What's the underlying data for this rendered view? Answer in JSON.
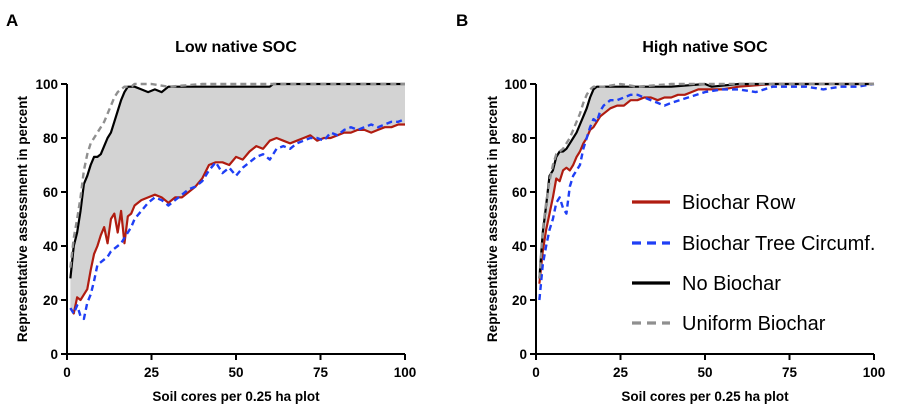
{
  "colors": {
    "biochar_row": "#b01c10",
    "biochar_tree": "#1f3ff5",
    "no_biochar": "#000000",
    "uniform": "#8f8f8f",
    "shade": "#d3d3d3"
  },
  "chart_data": [
    {
      "panel": "A",
      "type": "line",
      "title": "Low native SOC",
      "xlabel": "Soil cores per 0.25 ha plot",
      "ylabel": "Representative assessment in percent",
      "xlim": [
        0,
        100
      ],
      "ylim": [
        0,
        100
      ],
      "xticks": [
        "0",
        "25",
        "50",
        "75",
        "100"
      ],
      "yticks": [
        "0",
        "20",
        "40",
        "60",
        "80",
        "100"
      ],
      "grid": false,
      "shaded_region": "between No Biochar and Biochar Row",
      "series": [
        {
          "name": "Biochar Row",
          "style": "solid",
          "color": "#b01c10",
          "x": [
            1,
            2,
            3,
            4,
            5,
            6,
            7,
            8,
            9,
            10,
            11,
            12,
            13,
            14,
            15,
            16,
            17,
            18,
            19,
            20,
            22,
            24,
            26,
            28,
            30,
            32,
            34,
            36,
            38,
            40,
            42,
            44,
            46,
            48,
            50,
            52,
            54,
            56,
            58,
            60,
            62,
            64,
            66,
            68,
            70,
            72,
            74,
            76,
            78,
            80,
            82,
            84,
            86,
            88,
            90,
            92,
            94,
            96,
            98,
            100
          ],
          "y": [
            17,
            15,
            21,
            20,
            22,
            24,
            31,
            37,
            40,
            44,
            47,
            41,
            50,
            52,
            45,
            53,
            41,
            51,
            52,
            55,
            57,
            58,
            59,
            58,
            56,
            58,
            58,
            60,
            62,
            65,
            70,
            71,
            71,
            70,
            73,
            72,
            75,
            77,
            76,
            79,
            80,
            79,
            78,
            79,
            80,
            81,
            79,
            80,
            80,
            81,
            82,
            82,
            83,
            83,
            82,
            83,
            84,
            84,
            85,
            85
          ]
        },
        {
          "name": "Biochar Tree Circumf.",
          "style": "dashed",
          "color": "#1f3ff5",
          "x": [
            1,
            2,
            3,
            4,
            5,
            6,
            7,
            8,
            9,
            10,
            11,
            12,
            13,
            14,
            15,
            16,
            17,
            18,
            19,
            20,
            22,
            24,
            26,
            28,
            30,
            32,
            34,
            36,
            38,
            40,
            42,
            44,
            46,
            48,
            50,
            52,
            54,
            56,
            58,
            60,
            62,
            64,
            66,
            68,
            70,
            72,
            74,
            76,
            78,
            80,
            82,
            84,
            86,
            88,
            90,
            92,
            94,
            96,
            98,
            100
          ],
          "y": [
            17,
            15,
            18,
            14,
            13,
            19,
            22,
            27,
            33,
            34,
            35,
            36,
            38,
            39,
            40,
            41,
            43,
            45,
            47,
            50,
            53,
            56,
            58,
            57,
            55,
            57,
            59,
            61,
            62,
            64,
            68,
            71,
            67,
            69,
            66,
            69,
            71,
            73,
            74,
            72,
            76,
            77,
            76,
            78,
            79,
            80,
            80,
            79,
            82,
            81,
            83,
            84,
            83,
            84,
            85,
            84,
            85,
            86,
            86,
            87
          ]
        },
        {
          "name": "No Biochar",
          "style": "solid",
          "color": "#000000",
          "x": [
            1,
            2,
            3,
            4,
            5,
            6,
            7,
            8,
            9,
            10,
            11,
            12,
            13,
            14,
            15,
            16,
            17,
            18,
            19,
            20,
            22,
            24,
            26,
            28,
            30,
            35,
            40,
            45,
            50,
            55,
            60,
            61,
            65,
            70,
            80,
            90,
            100
          ],
          "y": [
            28,
            40,
            45,
            53,
            63,
            66,
            70,
            73,
            73,
            74,
            77,
            80,
            82,
            86,
            90,
            94,
            97,
            99,
            99,
            99,
            98,
            97,
            98,
            97,
            99,
            99,
            99,
            99,
            99,
            99,
            99,
            100,
            100,
            100,
            100,
            100,
            100
          ]
        },
        {
          "name": "Uniform Biochar",
          "style": "dashed",
          "color": "#8f8f8f",
          "x": [
            1,
            2,
            3,
            4,
            5,
            6,
            7,
            8,
            9,
            10,
            11,
            12,
            13,
            14,
            15,
            16,
            17,
            18,
            19,
            20,
            25,
            30,
            40,
            50,
            60,
            70,
            80,
            90,
            100
          ],
          "y": [
            32,
            43,
            50,
            58,
            68,
            74,
            78,
            80,
            82,
            84,
            86,
            89,
            92,
            95,
            97,
            98,
            99,
            99,
            99,
            100,
            100,
            99,
            100,
            100,
            100,
            100,
            100,
            100,
            100
          ]
        }
      ]
    },
    {
      "panel": "B",
      "type": "line",
      "title": "High native SOC",
      "xlabel": "Soil cores per 0.25 ha plot",
      "ylabel": "Representative assessment in percent",
      "xlim": [
        0,
        100
      ],
      "ylim": [
        0,
        100
      ],
      "xticks": [
        "0",
        "25",
        "50",
        "75",
        "100"
      ],
      "yticks": [
        "0",
        "20",
        "40",
        "60",
        "80",
        "100"
      ],
      "grid": false,
      "legend_position": "right",
      "shaded_region": "between No Biochar and Biochar Row",
      "series": [
        {
          "name": "Biochar Row",
          "style": "solid",
          "color": "#b01c10",
          "x": [
            1,
            2,
            3,
            4,
            5,
            6,
            7,
            8,
            9,
            10,
            11,
            12,
            13,
            14,
            15,
            16,
            17,
            18,
            19,
            20,
            22,
            24,
            26,
            28,
            30,
            32,
            34,
            36,
            38,
            40,
            42,
            44,
            46,
            48,
            50,
            55,
            60,
            70,
            80,
            90,
            100
          ],
          "y": [
            26,
            38,
            46,
            52,
            58,
            65,
            64,
            68,
            69,
            68,
            70,
            73,
            75,
            78,
            80,
            83,
            84,
            86,
            88,
            89,
            91,
            92,
            92,
            94,
            94,
            95,
            95,
            94,
            95,
            95,
            96,
            96,
            97,
            98,
            98,
            98,
            99,
            100,
            100,
            100,
            100
          ]
        },
        {
          "name": "Biochar Tree Circumf.",
          "style": "dashed",
          "color": "#1f3ff5",
          "x": [
            1,
            2,
            3,
            4,
            5,
            6,
            7,
            8,
            9,
            10,
            11,
            12,
            13,
            14,
            15,
            16,
            17,
            18,
            19,
            20,
            22,
            24,
            26,
            28,
            30,
            32,
            34,
            36,
            38,
            40,
            45,
            50,
            55,
            60,
            65,
            70,
            75,
            80,
            85,
            90,
            95,
            100
          ],
          "y": [
            20,
            33,
            40,
            46,
            50,
            56,
            58,
            54,
            52,
            62,
            66,
            68,
            70,
            76,
            80,
            84,
            87,
            86,
            90,
            92,
            94,
            94,
            95,
            96,
            96,
            95,
            94,
            93,
            92,
            93,
            95,
            97,
            98,
            98,
            97,
            99,
            99,
            99,
            98,
            99,
            99,
            100
          ]
        },
        {
          "name": "No Biochar",
          "style": "solid",
          "color": "#000000",
          "x": [
            1,
            2,
            3,
            4,
            5,
            6,
            7,
            8,
            9,
            10,
            11,
            12,
            13,
            14,
            15,
            16,
            17,
            18,
            19,
            20,
            25,
            30,
            40,
            50,
            52,
            60,
            70,
            80,
            90,
            100
          ],
          "y": [
            28,
            45,
            55,
            66,
            68,
            73,
            75,
            75,
            76,
            78,
            80,
            82,
            85,
            88,
            91,
            95,
            98,
            99,
            99,
            99,
            99,
            99,
            99,
            100,
            99,
            100,
            100,
            100,
            100,
            100
          ]
        },
        {
          "name": "Uniform Biochar",
          "style": "dashed",
          "color": "#8f8f8f",
          "x": [
            1,
            2,
            3,
            4,
            5,
            6,
            7,
            8,
            9,
            10,
            11,
            12,
            13,
            14,
            15,
            16,
            17,
            18,
            19,
            20,
            25,
            30,
            40,
            50,
            60,
            70,
            80,
            90,
            100
          ],
          "y": [
            28,
            46,
            56,
            64,
            70,
            74,
            75,
            76,
            78,
            80,
            83,
            86,
            89,
            93,
            96,
            98,
            99,
            99,
            99,
            99,
            100,
            99,
            100,
            100,
            100,
            100,
            100,
            100,
            100
          ]
        }
      ]
    }
  ]
}
